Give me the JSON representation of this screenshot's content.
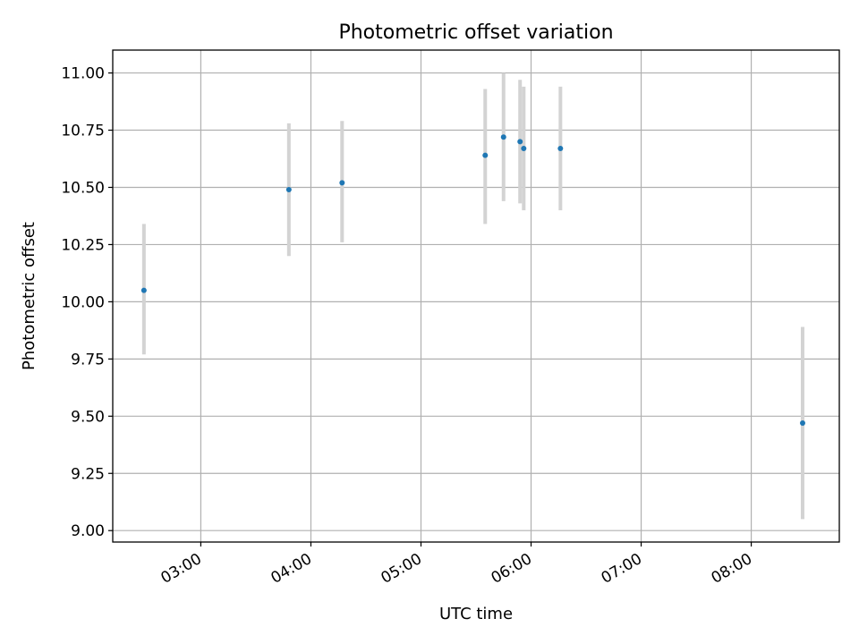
{
  "chart_data": {
    "type": "scatter",
    "title": "Photometric offset variation",
    "xlabel": "UTC time",
    "ylabel": "Photometric offset",
    "x_axis_type": "time",
    "xlim": [
      "02:12",
      "08:48"
    ],
    "ylim": [
      8.95,
      11.1
    ],
    "grid": true,
    "x_ticks": [
      "03:00",
      "04:00",
      "05:00",
      "06:00",
      "07:00",
      "08:00"
    ],
    "y_ticks": [
      "9.00",
      "9.25",
      "9.50",
      "9.75",
      "10.00",
      "10.25",
      "10.50",
      "10.75",
      "11.00"
    ],
    "points": [
      {
        "x": "02:29",
        "y": 10.05,
        "err_low": 9.77,
        "err_high": 10.34
      },
      {
        "x": "03:48",
        "y": 10.49,
        "err_low": 10.2,
        "err_high": 10.78
      },
      {
        "x": "04:17",
        "y": 10.52,
        "err_low": 10.26,
        "err_high": 10.79
      },
      {
        "x": "05:35",
        "y": 10.64,
        "err_low": 10.34,
        "err_high": 10.93
      },
      {
        "x": "05:45",
        "y": 10.72,
        "err_low": 10.44,
        "err_high": 11.0
      },
      {
        "x": "05:54",
        "y": 10.7,
        "err_low": 10.43,
        "err_high": 10.97
      },
      {
        "x": "05:56",
        "y": 10.67,
        "err_low": 10.4,
        "err_high": 10.94
      },
      {
        "x": "06:16",
        "y": 10.67,
        "err_low": 10.4,
        "err_high": 10.94
      },
      {
        "x": "08:28",
        "y": 9.47,
        "err_low": 9.05,
        "err_high": 9.89
      }
    ],
    "colors": {
      "point": "#1f77b4",
      "errorbar": "#d3d3d3",
      "grid": "#b0b0b0"
    }
  }
}
